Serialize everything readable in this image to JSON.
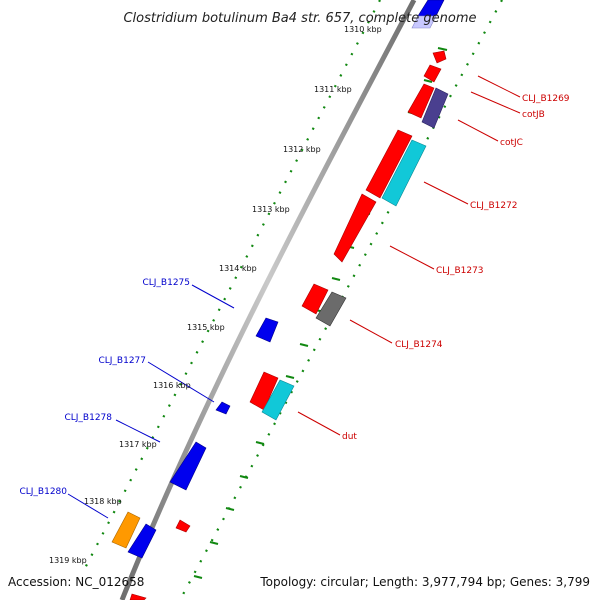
{
  "title": "Clostridium botulinum Ba4 str. 657, complete genome",
  "footer": {
    "accession": "Accession: NC_012658",
    "topology": "Topology: circular; Length: 3,977,794 bp; Genes: 3,799"
  },
  "ruler": {
    "clipped_label": "1310 kbp",
    "ticks": [
      "1311 kbp",
      "1312 kbp",
      "1313 kbp",
      "1314 kbp",
      "1315 kbp",
      "1316 kbp",
      "1317 kbp",
      "1318 kbp",
      "1319 kbp"
    ]
  },
  "gene_labels": {
    "right": [
      "CLJ_B1269",
      "cotJB",
      "cotJC",
      "CLJ_B1272",
      "CLJ_B1273",
      "CLJ_B1274",
      "dut"
    ],
    "left": [
      "CLJ_B1275",
      "CLJ_B1277",
      "CLJ_B1278",
      "CLJ_B1280"
    ]
  },
  "colors": {
    "forward_gene": "#ff0000",
    "reverse_gene": "#0000ee",
    "label_right": "#cc0000",
    "label_left": "#0000cc",
    "gc_ticks": "#118811",
    "backbone": "#8a8a8a"
  }
}
